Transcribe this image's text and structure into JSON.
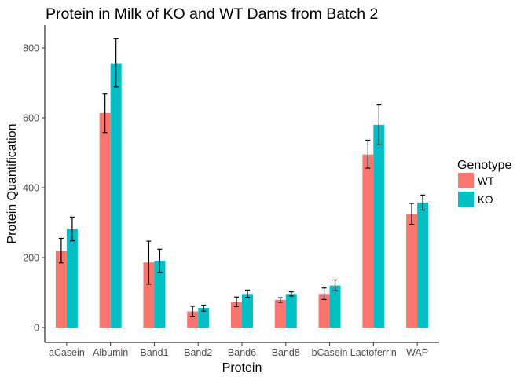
{
  "chart_data": {
    "type": "bar",
    "title": "Protein in Milk of KO and WT Dams from Batch 2",
    "xlabel": "Protein",
    "ylabel": "Protein Quantification",
    "categories": [
      "aCasein",
      "Albumin",
      "Band1",
      "Band2",
      "Band6",
      "Band8",
      "bCasein",
      "Lactoferrin",
      "WAP"
    ],
    "ylim": [
      -30,
      867
    ],
    "yticks": [
      0,
      200,
      400,
      600,
      800
    ],
    "grid": false,
    "legend": {
      "title": "Genotype",
      "position": "right"
    },
    "series": [
      {
        "name": "WT",
        "color": "#F8766D",
        "values": [
          220,
          614,
          186,
          46,
          73,
          79,
          96,
          495,
          325
        ],
        "error": [
          [
            185,
            255
          ],
          [
            558,
            668
          ],
          [
            124,
            247
          ],
          [
            32,
            61
          ],
          [
            60,
            87
          ],
          [
            72,
            85
          ],
          [
            80,
            113
          ],
          [
            456,
            536
          ],
          [
            295,
            355
          ]
        ]
      },
      {
        "name": "KO",
        "color": "#00BFC4",
        "values": [
          282,
          756,
          191,
          56,
          96,
          96,
          120,
          580,
          357
        ],
        "error": [
          [
            248,
            316
          ],
          [
            688,
            826
          ],
          [
            158,
            224
          ],
          [
            47,
            64
          ],
          [
            86,
            107
          ],
          [
            90,
            102
          ],
          [
            105,
            136
          ],
          [
            523,
            637
          ],
          [
            336,
            379
          ]
        ]
      }
    ]
  }
}
